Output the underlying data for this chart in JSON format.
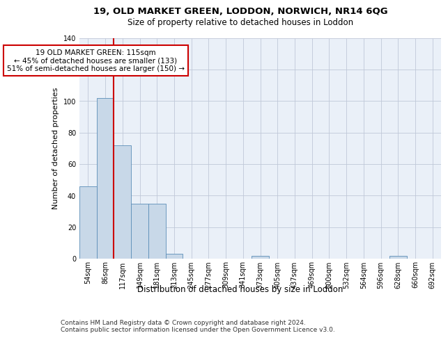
{
  "title_line1": "19, OLD MARKET GREEN, LODDON, NORWICH, NR14 6QG",
  "title_line2": "Size of property relative to detached houses in Loddon",
  "xlabel": "Distribution of detached houses by size in Loddon",
  "ylabel": "Number of detached properties",
  "bin_labels": [
    "54sqm",
    "86sqm",
    "117sqm",
    "149sqm",
    "181sqm",
    "213sqm",
    "245sqm",
    "277sqm",
    "309sqm",
    "341sqm",
    "373sqm",
    "405sqm",
    "437sqm",
    "469sqm",
    "500sqm",
    "532sqm",
    "564sqm",
    "596sqm",
    "628sqm",
    "660sqm",
    "692sqm"
  ],
  "bar_heights": [
    46,
    102,
    72,
    35,
    35,
    3,
    0,
    0,
    0,
    0,
    2,
    0,
    0,
    0,
    0,
    0,
    0,
    0,
    2,
    0,
    0
  ],
  "bar_color": "#c8d8e8",
  "bar_edge_color": "#5b8db8",
  "vline_color": "#cc0000",
  "vline_x_index": 2,
  "annotation_text": "19 OLD MARKET GREEN: 115sqm\n← 45% of detached houses are smaller (133)\n51% of semi-detached houses are larger (150) →",
  "annotation_box_color": "#ffffff",
  "annotation_box_edge": "#cc0000",
  "ylim": [
    0,
    140
  ],
  "yticks": [
    0,
    20,
    40,
    60,
    80,
    100,
    120,
    140
  ],
  "grid_color": "#c0c8d8",
  "background_color": "#eaf0f8",
  "footer_text": "Contains HM Land Registry data © Crown copyright and database right 2024.\nContains public sector information licensed under the Open Government Licence v3.0.",
  "title_fontsize": 9.5,
  "subtitle_fontsize": 8.5,
  "xlabel_fontsize": 8.5,
  "ylabel_fontsize": 8,
  "tick_fontsize": 7,
  "annotation_fontsize": 7.5,
  "footer_fontsize": 6.5
}
